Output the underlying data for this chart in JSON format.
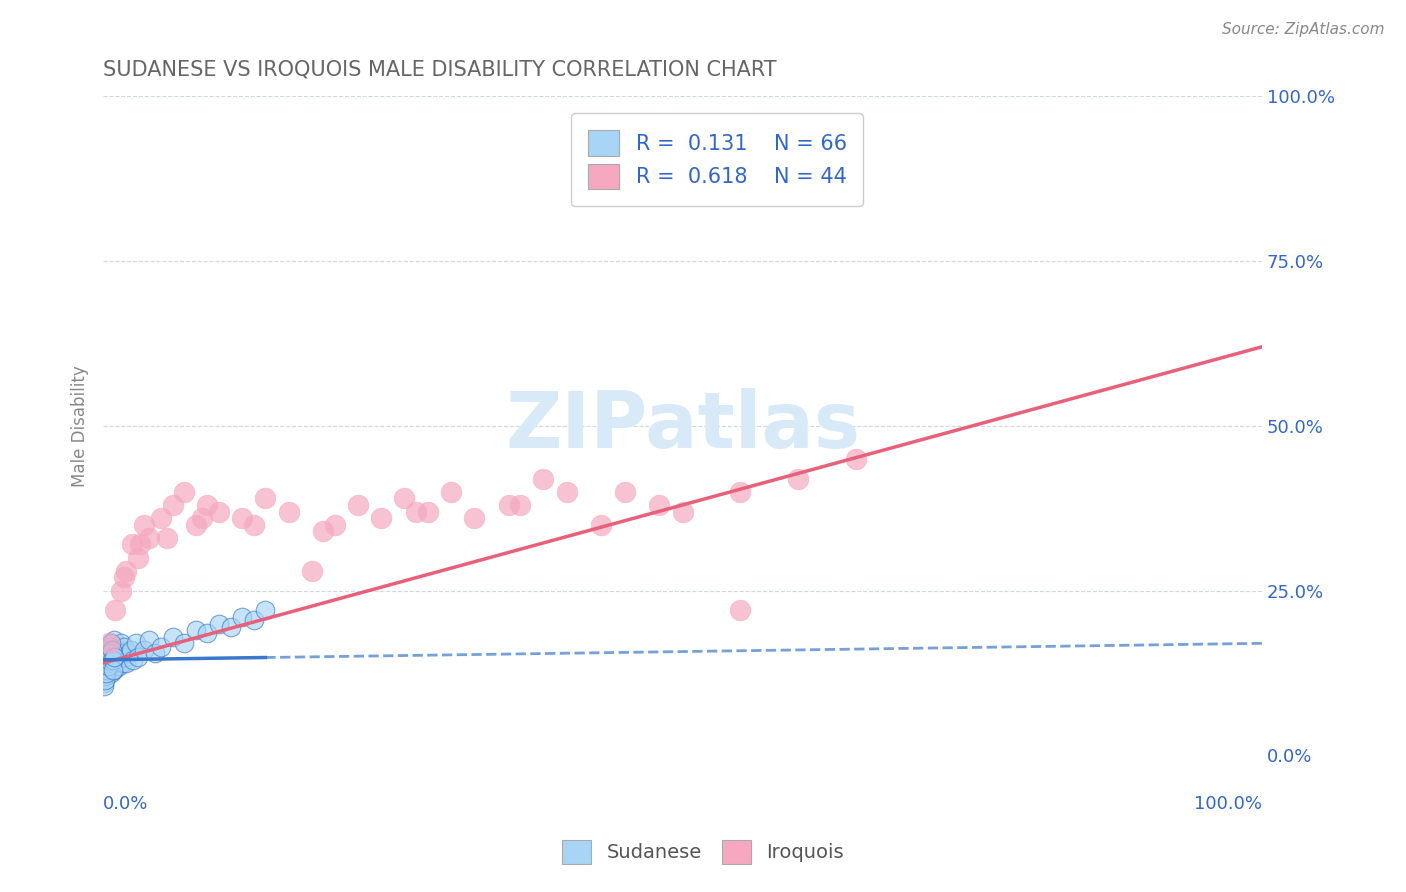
{
  "title": "SUDANESE VS IROQUOIS MALE DISABILITY CORRELATION CHART",
  "source_text": "Source: ZipAtlas.com",
  "ylabel": "Male Disability",
  "ytick_labels": [
    "0.0%",
    "25.0%",
    "50.0%",
    "75.0%",
    "100.0%"
  ],
  "ytick_values": [
    0,
    25,
    50,
    75,
    100
  ],
  "xtick_values": [
    0,
    10,
    20,
    30,
    40,
    50,
    60,
    70,
    80,
    90,
    100
  ],
  "xlim": [
    0,
    100
  ],
  "ylim": [
    0,
    100
  ],
  "sudanese_R": 0.131,
  "sudanese_N": 66,
  "iroquois_R": 0.618,
  "iroquois_N": 44,
  "sudanese_color": "#a8d4f5",
  "iroquois_color": "#f5a8c0",
  "sudanese_line_color": "#3a78c9",
  "iroquois_line_color": "#e8607a",
  "legend_color": "#3366cc",
  "title_color": "#666666",
  "axis_label_color": "#3366cc",
  "watermark_color": "#d8eaf8",
  "background_color": "#ffffff",
  "grid_color": "#d0d8e8",
  "sudanese_x": [
    0.1,
    0.15,
    0.2,
    0.25,
    0.3,
    0.35,
    0.4,
    0.45,
    0.5,
    0.55,
    0.6,
    0.65,
    0.7,
    0.75,
    0.8,
    0.85,
    0.9,
    0.95,
    1.0,
    1.1,
    1.2,
    1.3,
    1.4,
    1.5,
    1.6,
    1.7,
    1.8,
    1.9,
    2.0,
    2.2,
    2.4,
    2.6,
    2.8,
    3.0,
    3.5,
    4.0,
    4.5,
    5.0,
    6.0,
    7.0,
    8.0,
    9.0,
    10.0,
    11.0,
    12.0,
    13.0,
    14.0,
    0.05,
    0.08,
    0.12,
    0.18,
    0.22,
    0.28,
    0.32,
    0.38,
    0.42,
    0.48,
    0.52,
    0.58,
    0.62,
    0.68,
    0.72,
    0.78,
    0.82,
    0.88,
    0.92
  ],
  "sudanese_y": [
    14.0,
    13.5,
    16.0,
    12.0,
    15.5,
    14.5,
    13.0,
    16.5,
    15.0,
    14.0,
    13.5,
    17.0,
    12.5,
    16.0,
    15.0,
    14.5,
    13.0,
    17.5,
    14.0,
    15.0,
    16.0,
    14.5,
    13.5,
    17.0,
    15.5,
    14.0,
    16.5,
    15.0,
    14.0,
    15.5,
    16.0,
    14.5,
    17.0,
    15.0,
    16.0,
    17.5,
    15.5,
    16.5,
    18.0,
    17.0,
    19.0,
    18.5,
    20.0,
    19.5,
    21.0,
    20.5,
    22.0,
    11.0,
    10.5,
    12.0,
    11.5,
    13.0,
    12.5,
    14.0,
    13.5,
    15.0,
    14.5,
    16.0,
    15.5,
    16.5,
    17.0,
    15.5,
    16.0,
    14.5,
    13.0,
    15.0
  ],
  "iroquois_x": [
    0.5,
    1.0,
    1.5,
    2.0,
    2.5,
    3.0,
    3.5,
    4.0,
    5.0,
    6.0,
    7.0,
    8.0,
    9.0,
    10.0,
    12.0,
    14.0,
    16.0,
    18.0,
    20.0,
    22.0,
    24.0,
    26.0,
    28.0,
    30.0,
    32.0,
    35.0,
    38.0,
    40.0,
    43.0,
    45.0,
    48.0,
    50.0,
    55.0,
    60.0,
    65.0,
    1.8,
    3.2,
    5.5,
    8.5,
    13.0,
    19.0,
    27.0,
    36.0,
    55.0
  ],
  "iroquois_y": [
    17.0,
    22.0,
    25.0,
    28.0,
    32.0,
    30.0,
    35.0,
    33.0,
    36.0,
    38.0,
    40.0,
    35.0,
    38.0,
    37.0,
    36.0,
    39.0,
    37.0,
    28.0,
    35.0,
    38.0,
    36.0,
    39.0,
    37.0,
    40.0,
    36.0,
    38.0,
    42.0,
    40.0,
    35.0,
    40.0,
    38.0,
    37.0,
    40.0,
    42.0,
    45.0,
    27.0,
    32.0,
    33.0,
    36.0,
    35.0,
    34.0,
    37.0,
    38.0,
    22.0
  ],
  "sudanese_line_x0": 0,
  "sudanese_line_x1": 100,
  "sudanese_line_y0": 14.5,
  "sudanese_line_y1": 17.0,
  "sudanese_solid_x0": 0,
  "sudanese_solid_x1": 14.0,
  "sudanese_solid_y0": 14.5,
  "sudanese_solid_y1": 15.5,
  "iroquois_line_x0": 0,
  "iroquois_line_x1": 100,
  "iroquois_line_y0": 14.0,
  "iroquois_line_y1": 62.0
}
